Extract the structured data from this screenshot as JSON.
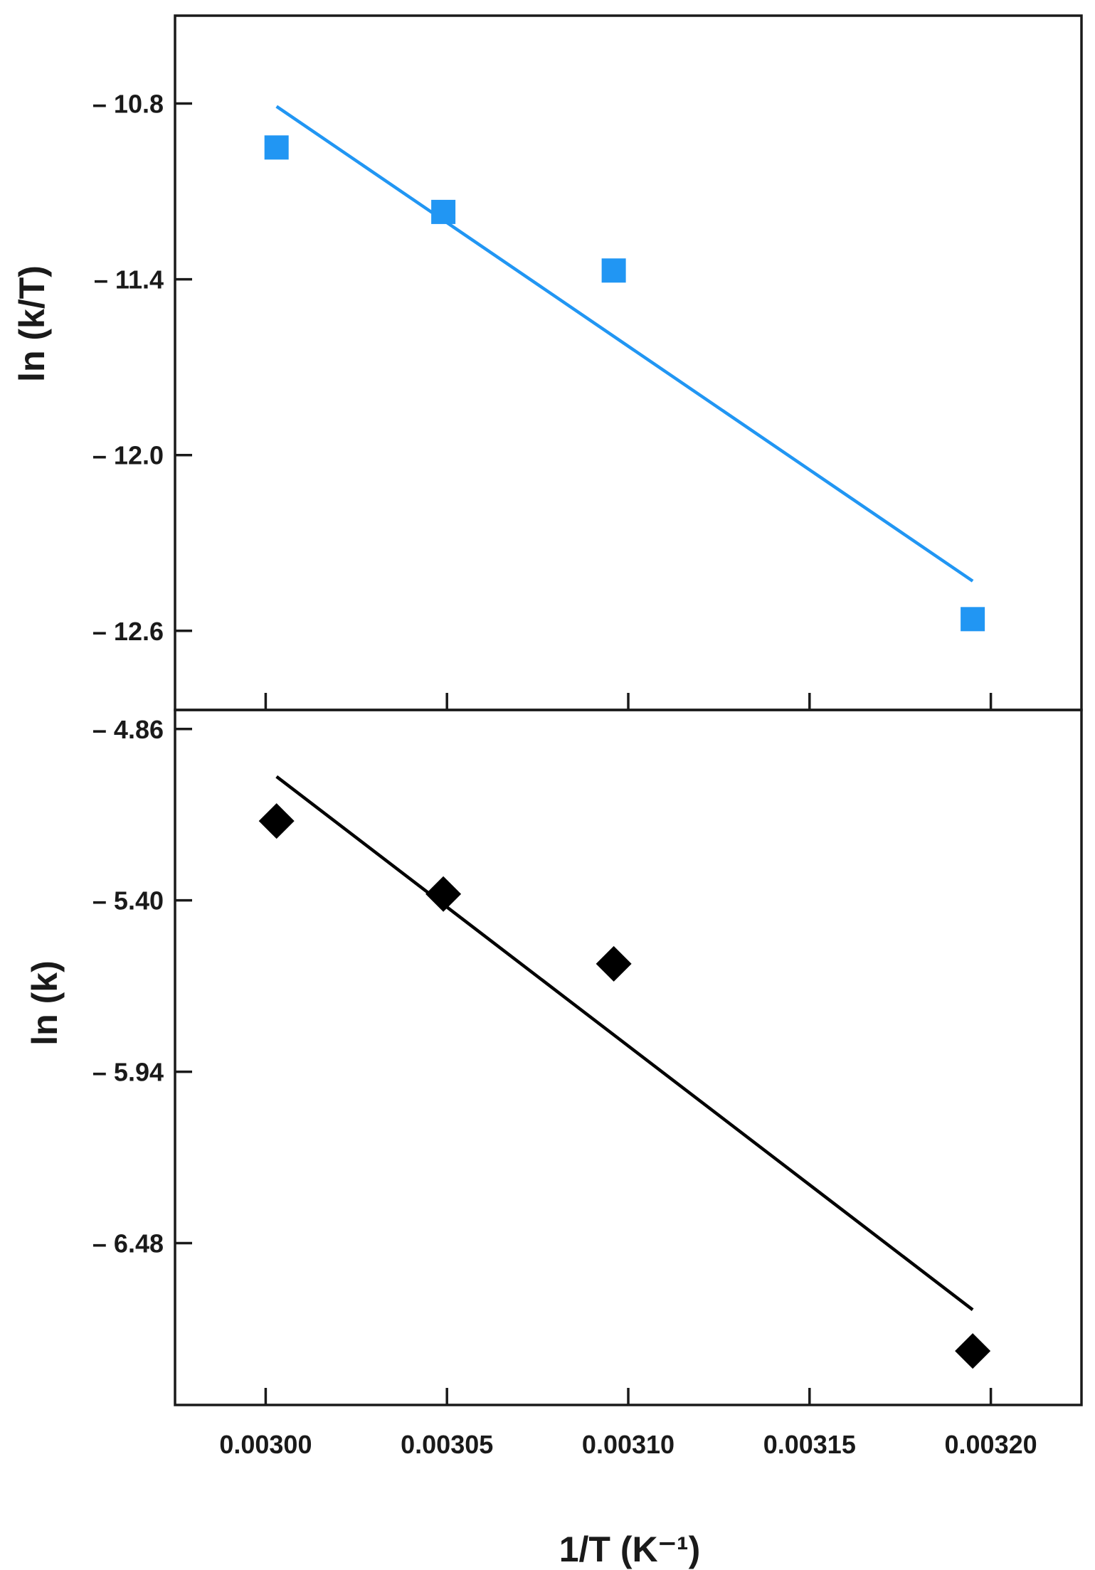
{
  "chart_data": [
    {
      "type": "scatter",
      "panel": "top",
      "ylabel": "ln (k/T)",
      "xlabel": "",
      "xlim": [
        0.002975,
        0.003225
      ],
      "ylim": [
        -12.87,
        -10.5
      ],
      "yticks": [
        -10.8,
        -11.4,
        -12.0,
        -12.6
      ],
      "ytick_labels": [
        "– 10.8",
        "– 11.4",
        "– 12.0",
        "– 12.6"
      ],
      "xticks": [
        0.003,
        0.00305,
        0.0031,
        0.00315,
        0.0032
      ],
      "marker": "square",
      "color": "#2196f3",
      "series": [
        {
          "x": [
            0.003003,
            0.003049,
            0.003096,
            0.003195
          ],
          "y": [
            -10.95,
            -11.17,
            -11.37,
            -12.56
          ]
        }
      ],
      "fit_line": {
        "x": [
          0.003003,
          0.003195
        ],
        "y": [
          -10.81,
          -12.43
        ]
      },
      "grid": false
    },
    {
      "type": "scatter",
      "panel": "bottom",
      "ylabel": "ln (k)",
      "xlabel": "1/T (K⁻¹)",
      "xlim": [
        0.002975,
        0.003225
      ],
      "ylim": [
        -6.99,
        -4.8
      ],
      "yticks": [
        -4.86,
        -5.4,
        -5.94,
        -6.48
      ],
      "ytick_labels": [
        "– 4.86",
        "– 5.40",
        "– 5.94",
        "– 6.48"
      ],
      "xticks": [
        0.003,
        0.00305,
        0.0031,
        0.00315,
        0.0032
      ],
      "xtick_labels": [
        "0.00300",
        "0.00305",
        "0.00310",
        "0.00315",
        "0.00320"
      ],
      "marker": "diamond",
      "color": "#000000",
      "series": [
        {
          "x": [
            0.003003,
            0.003049,
            0.003096,
            0.003195
          ],
          "y": [
            -5.15,
            -5.38,
            -5.6,
            -6.82
          ]
        }
      ],
      "fit_line": {
        "x": [
          0.003003,
          0.003195
        ],
        "y": [
          -5.01,
          -6.69
        ]
      },
      "grid": false
    }
  ]
}
